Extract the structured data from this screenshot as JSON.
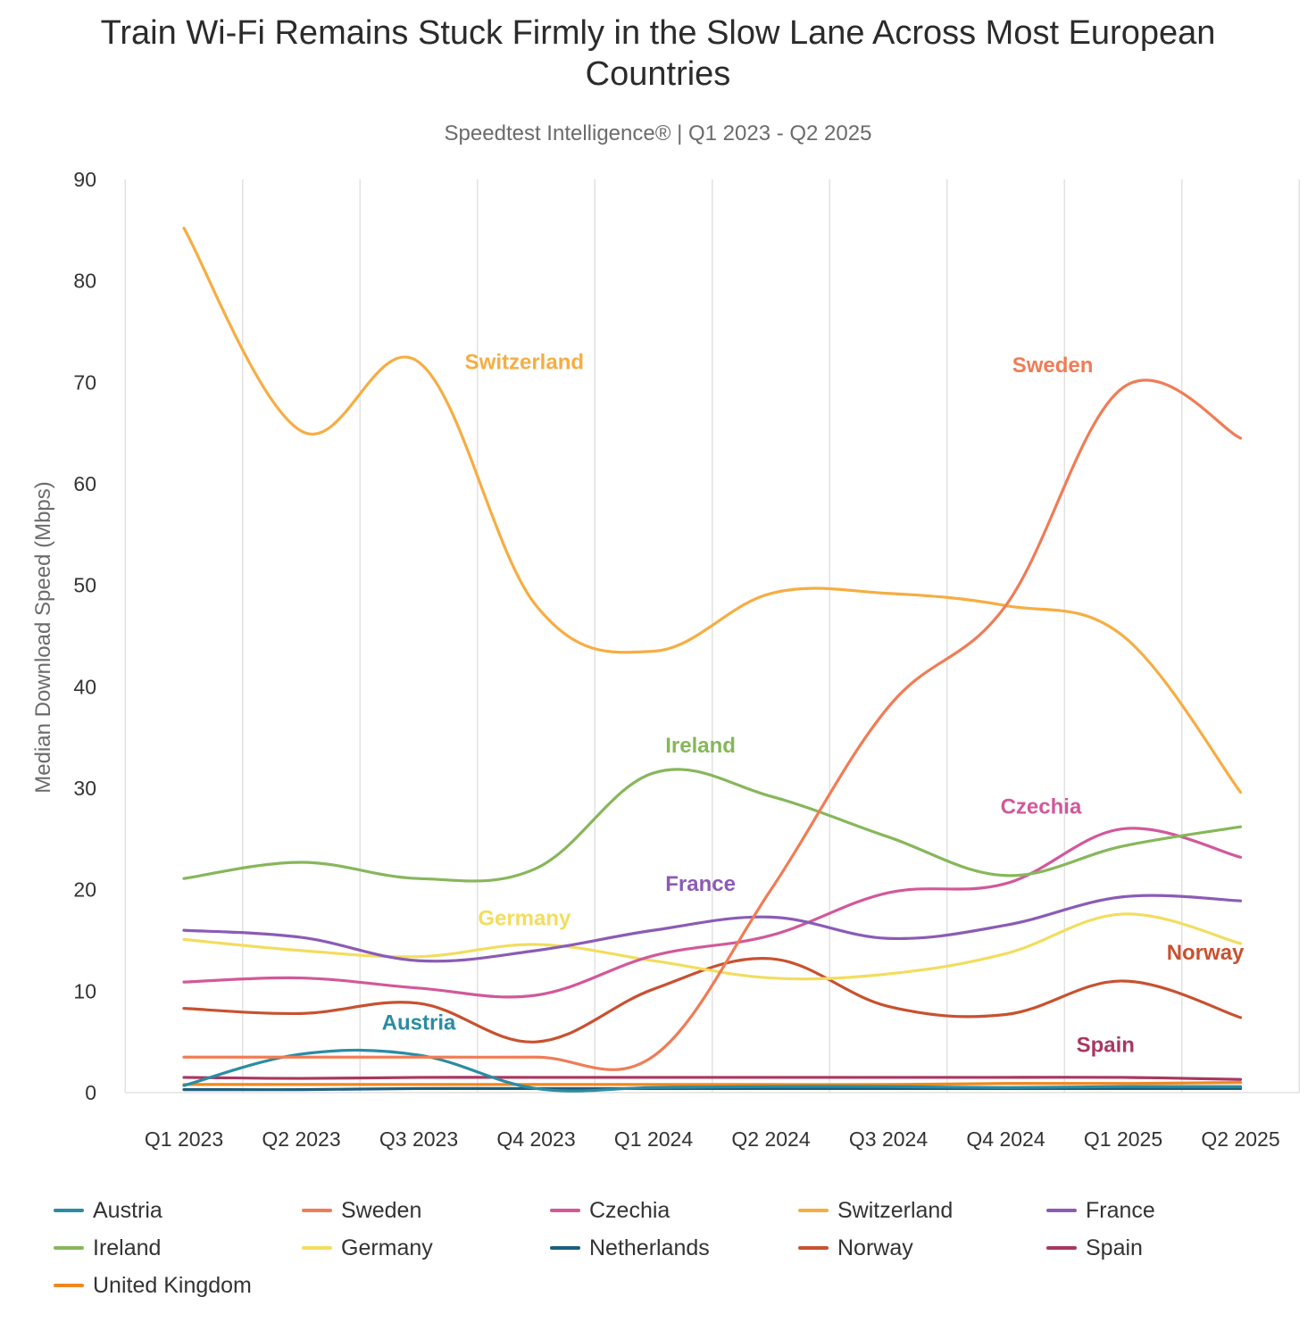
{
  "title": "Train Wi-Fi Remains Stuck Firmly in the Slow Lane Across Most European Countries",
  "subtitle": "Speedtest Intelligence® | Q1 2023 - Q2 2025",
  "chart_data": {
    "type": "line",
    "x": [
      "Q1 2023",
      "Q2 2023",
      "Q3 2023",
      "Q4 2023",
      "Q1 2024",
      "Q2 2024",
      "Q3 2024",
      "Q4 2024",
      "Q1 2025",
      "Q2 2025"
    ],
    "ylabel": "Median Download Speed (Mbps)",
    "ylim": [
      0,
      90
    ],
    "yticks": [
      0,
      10,
      20,
      30,
      40,
      50,
      60,
      70,
      80,
      90
    ],
    "grid": "vertical",
    "legend": "bottom",
    "series": [
      {
        "name": "Austria",
        "color": "#2a8ca3",
        "values": [
          0.7,
          3.8,
          3.7,
          0.4,
          0.5,
          0.6,
          0.6,
          0.5,
          0.6,
          0.6
        ],
        "label": "Austria",
        "label_pos": [
          2.0,
          6.2
        ]
      },
      {
        "name": "Sweden",
        "color": "#f07c55",
        "values": [
          3.5,
          3.5,
          3.5,
          3.5,
          3.6,
          20.0,
          38.0,
          48.0,
          69.5,
          64.5
        ],
        "label": "Sweden",
        "label_pos": [
          7.4,
          71.0
        ]
      },
      {
        "name": "Czechia",
        "color": "#d2589a",
        "values": [
          10.9,
          11.3,
          10.3,
          9.6,
          13.5,
          15.5,
          19.7,
          20.6,
          26.0,
          23.2
        ],
        "label": "Czechia",
        "label_pos": [
          7.3,
          27.5
        ]
      },
      {
        "name": "Switzerland",
        "color": "#f6ad42",
        "values": [
          85.2,
          65.2,
          72.0,
          48.0,
          43.5,
          49.2,
          49.2,
          48.0,
          45.0,
          29.6
        ],
        "label": "Switzerland",
        "label_pos": [
          2.9,
          71.3
        ]
      },
      {
        "name": "France",
        "color": "#8b5bb5",
        "values": [
          16.0,
          15.3,
          13.0,
          14.0,
          16.0,
          17.3,
          15.2,
          16.5,
          19.3,
          18.9
        ],
        "label": "France",
        "label_pos": [
          4.4,
          19.9
        ]
      },
      {
        "name": "Ireland",
        "color": "#86b75a",
        "values": [
          21.1,
          22.7,
          21.1,
          22.1,
          31.5,
          29.2,
          25.2,
          21.4,
          24.3,
          26.2
        ],
        "label": "Ireland",
        "label_pos": [
          4.4,
          33.5
        ]
      },
      {
        "name": "Germany",
        "color": "#f2dd5e",
        "values": [
          15.1,
          14.0,
          13.4,
          14.6,
          13.0,
          11.3,
          11.7,
          13.7,
          17.6,
          14.7
        ],
        "label": "Germany",
        "label_pos": [
          2.9,
          16.5
        ]
      },
      {
        "name": "Netherlands",
        "color": "#1d5f7d",
        "values": [
          0.3,
          0.3,
          0.4,
          0.4,
          0.4,
          0.4,
          0.4,
          0.4,
          0.4,
          0.4
        ],
        "label": "",
        "label_pos": null
      },
      {
        "name": "Norway",
        "color": "#c8512f",
        "values": [
          8.3,
          7.8,
          8.8,
          5.0,
          10.2,
          13.2,
          8.5,
          7.7,
          11.0,
          7.4
        ],
        "label": "Norway",
        "label_pos": [
          8.7,
          13.1
        ]
      },
      {
        "name": "Spain",
        "color": "#a93760",
        "values": [
          1.5,
          1.4,
          1.5,
          1.5,
          1.5,
          1.5,
          1.5,
          1.5,
          1.5,
          1.3
        ],
        "label": "Spain",
        "label_pos": [
          7.85,
          4.0
        ]
      },
      {
        "name": "United Kingdom",
        "color": "#f0881c",
        "values": [
          0.8,
          0.8,
          0.8,
          0.8,
          0.8,
          0.8,
          0.8,
          0.9,
          0.9,
          1.0
        ],
        "label": "",
        "label_pos": null
      }
    ]
  }
}
